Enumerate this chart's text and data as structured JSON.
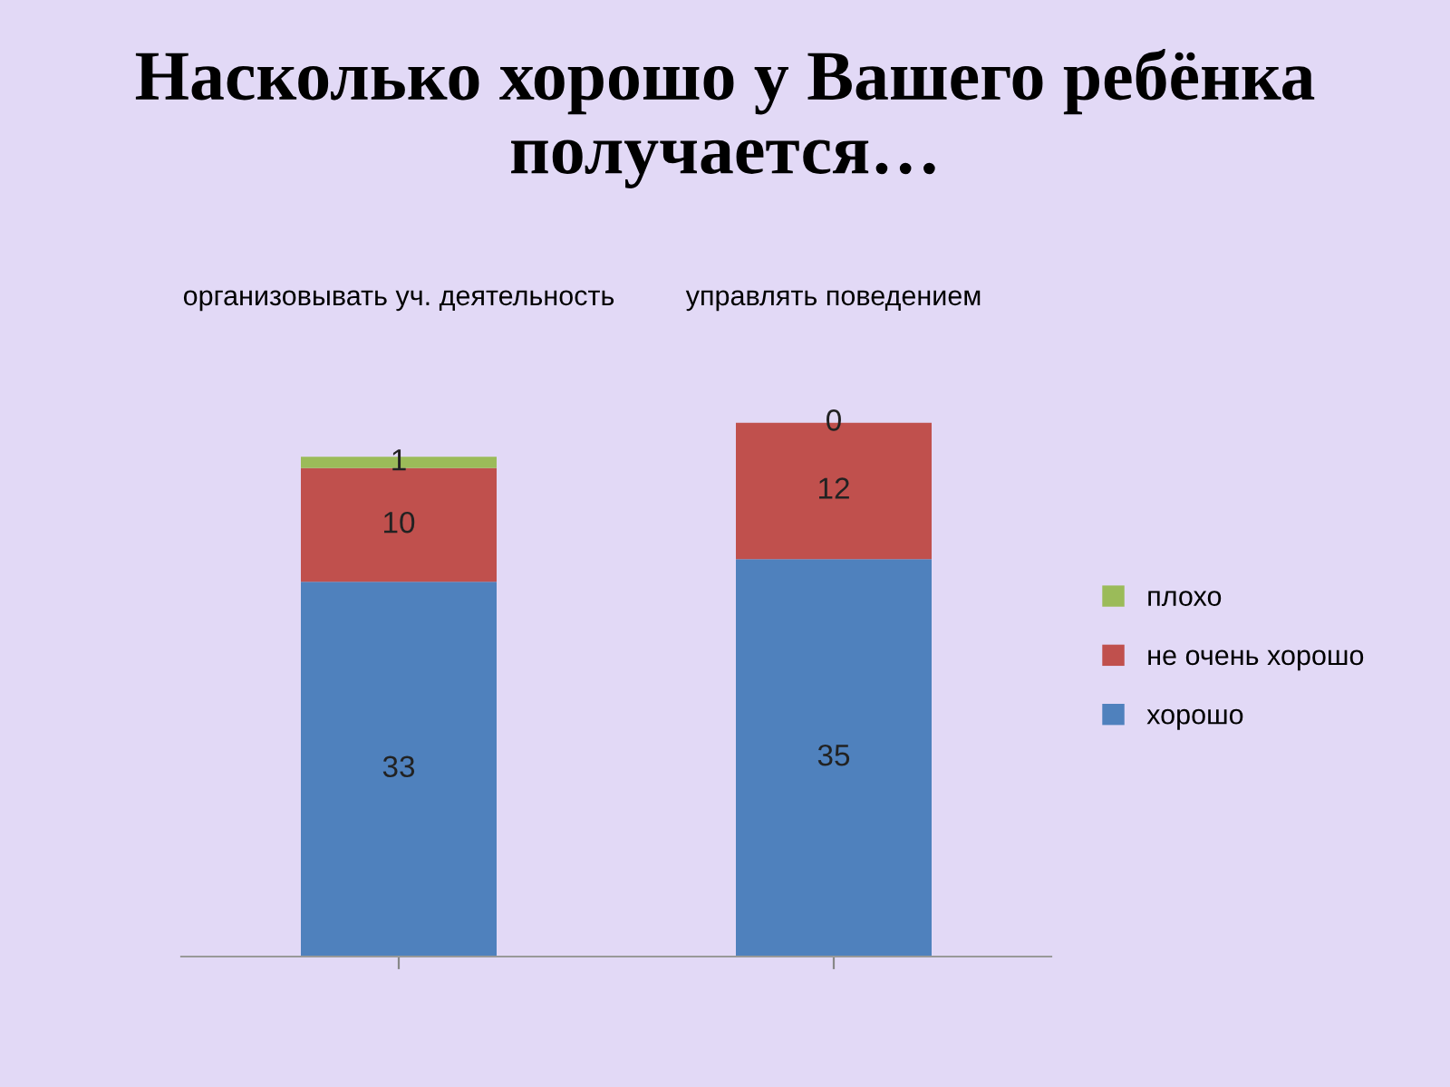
{
  "chart_data": {
    "type": "bar",
    "title": "Насколько хорошо у Вашего ребёнка получается…",
    "categories": [
      "организовывать уч. деятельность",
      "управлять поведением"
    ],
    "stacked": true,
    "series": [
      {
        "name": "хорошо",
        "color": "#4f81bd",
        "values": [
          33,
          35
        ]
      },
      {
        "name": "не очень хорошо",
        "color": "#c0504d",
        "values": [
          10,
          12
        ]
      },
      {
        "name": "плохо",
        "color": "#9bbb59",
        "values": [
          1,
          0
        ]
      }
    ],
    "data_labels": true,
    "legend": "right",
    "tick_labels": "x"
  }
}
